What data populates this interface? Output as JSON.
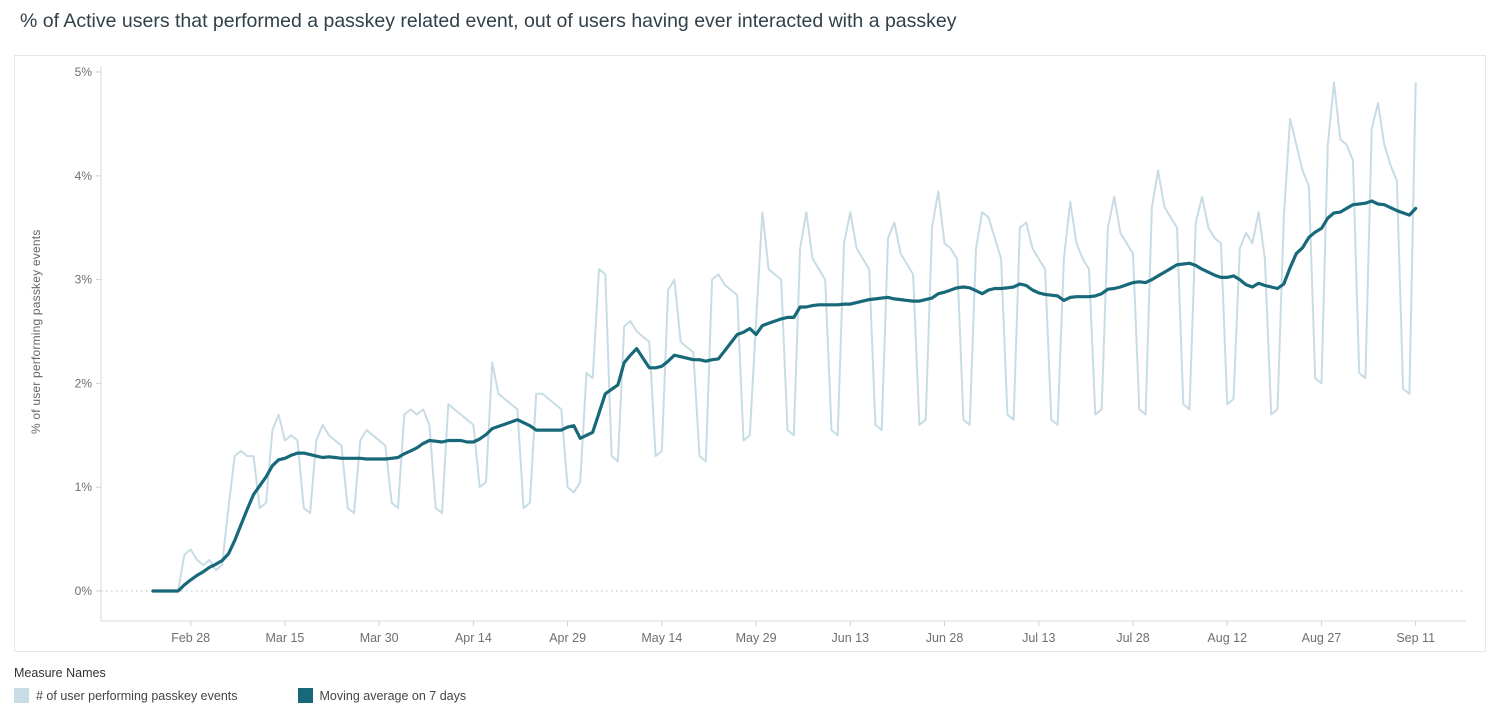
{
  "page": {
    "title": "% of Active users that performed a passkey related event, out of users having ever interacted with a passkey"
  },
  "legend": {
    "title": "Measure Names",
    "items": [
      {
        "label": "# of user performing passkey events",
        "color": "#c8dce5"
      },
      {
        "label": "Moving average on 7 days",
        "color": "#17697a"
      }
    ]
  },
  "chart_data": {
    "type": "line",
    "title": "% of Active users that performed a passkey related event, out of users having ever interacted with a passkey",
    "xlabel": "",
    "ylabel": "% of user performing passkey events",
    "ylim": [
      0,
      5
    ],
    "y_ticks": [
      "0%",
      "1%",
      "2%",
      "3%",
      "4%",
      "5%"
    ],
    "grid": "zero-line-dotted-only",
    "legend_position": "bottom-left",
    "x_unit": "day",
    "x_start_date": "Feb 22",
    "x_end_date": "Sep 11",
    "x_tick_labels": [
      "Feb 28",
      "Mar 15",
      "Mar 30",
      "Apr 14",
      "Apr 29",
      "May 14",
      "May 29",
      "Jun 13",
      "Jun 28",
      "Jul 13",
      "Jul 28",
      "Aug 12",
      "Aug 27",
      "Sep 11"
    ],
    "x_tick_day_indices": [
      6,
      21,
      36,
      51,
      66,
      81,
      96,
      111,
      126,
      141,
      156,
      171,
      186,
      201
    ],
    "series": [
      {
        "name": "# of user performing passkey events",
        "color": "#c8dce5",
        "stroke_width": 2,
        "values": [
          0,
          0,
          0,
          0,
          0,
          0.35,
          0.4,
          0.3,
          0.25,
          0.3,
          0.2,
          0.25,
          0.8,
          1.3,
          1.35,
          1.3,
          1.3,
          0.8,
          0.85,
          1.55,
          1.7,
          1.45,
          1.5,
          1.45,
          0.8,
          0.75,
          1.45,
          1.6,
          1.5,
          1.45,
          1.4,
          0.8,
          0.75,
          1.45,
          1.55,
          1.5,
          1.45,
          1.4,
          0.85,
          0.8,
          1.7,
          1.75,
          1.7,
          1.75,
          1.6,
          0.8,
          0.75,
          1.8,
          1.75,
          1.7,
          1.65,
          1.6,
          1.0,
          1.05,
          2.2,
          1.9,
          1.85,
          1.8,
          1.75,
          0.8,
          0.85,
          1.9,
          1.9,
          1.85,
          1.8,
          1.75,
          1.0,
          0.95,
          1.05,
          2.1,
          2.05,
          3.1,
          3.05,
          1.3,
          1.25,
          2.55,
          2.6,
          2.5,
          2.45,
          2.4,
          1.3,
          1.35,
          2.9,
          3.0,
          2.4,
          2.35,
          2.3,
          1.3,
          1.25,
          3.0,
          3.05,
          2.95,
          2.9,
          2.85,
          1.45,
          1.5,
          2.6,
          3.65,
          3.1,
          3.05,
          3.0,
          1.55,
          1.5,
          3.3,
          3.65,
          3.2,
          3.1,
          3.0,
          1.55,
          1.5,
          3.35,
          3.65,
          3.3,
          3.2,
          3.1,
          1.6,
          1.55,
          3.4,
          3.55,
          3.25,
          3.15,
          3.05,
          1.6,
          1.65,
          3.5,
          3.85,
          3.35,
          3.3,
          3.2,
          1.65,
          1.6,
          3.3,
          3.65,
          3.6,
          3.4,
          3.2,
          1.7,
          1.65,
          3.5,
          3.55,
          3.3,
          3.2,
          3.1,
          1.65,
          1.6,
          3.2,
          3.75,
          3.35,
          3.2,
          3.1,
          1.7,
          1.75,
          3.5,
          3.8,
          3.45,
          3.35,
          3.25,
          1.75,
          1.7,
          3.7,
          4.05,
          3.7,
          3.6,
          3.5,
          1.8,
          1.75,
          3.55,
          3.8,
          3.5,
          3.4,
          3.35,
          1.8,
          1.85,
          3.3,
          3.45,
          3.35,
          3.65,
          3.2,
          1.7,
          1.75,
          3.6,
          4.55,
          4.3,
          4.05,
          3.9,
          2.05,
          2.0,
          4.3,
          4.9,
          4.35,
          4.3,
          4.15,
          2.1,
          2.05,
          4.45,
          4.7,
          4.3,
          4.1,
          3.95,
          1.95,
          1.9,
          4.9
        ]
      },
      {
        "name": "Moving average on 7 days",
        "color": "#17697a",
        "stroke_width": 3.2,
        "derived": "7-day trailing average of the daily series"
      }
    ]
  }
}
